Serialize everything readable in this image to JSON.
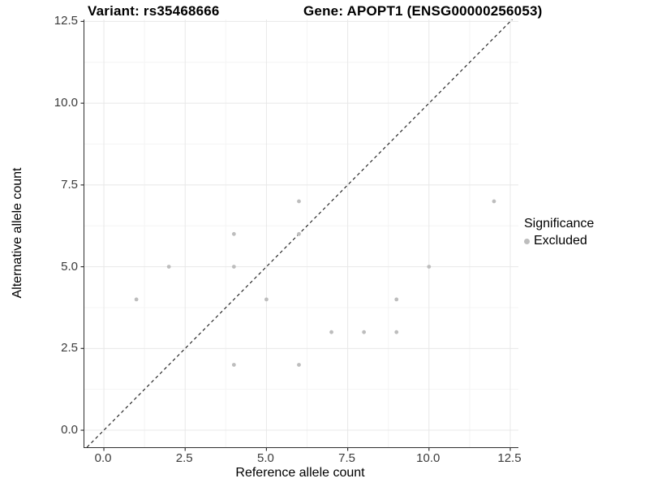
{
  "chart_data": {
    "type": "scatter",
    "title_left": "Variant: rs35468666",
    "title_right": "Gene: APOPT1 (ENSG00000256053)",
    "xlabel": "Reference allele count",
    "ylabel": "Alternative allele count",
    "xlim": [
      -0.6,
      12.75
    ],
    "ylim": [
      -0.52,
      12.56
    ],
    "x_ticks": [
      {
        "value": 0,
        "label": "0.0"
      },
      {
        "value": 2.5,
        "label": "2.5"
      },
      {
        "value": 5,
        "label": "5.0"
      },
      {
        "value": 7.5,
        "label": "7.5"
      },
      {
        "value": 10,
        "label": "10.0"
      },
      {
        "value": 12.5,
        "label": "12.5"
      }
    ],
    "y_ticks": [
      {
        "value": 0,
        "label": "0.0"
      },
      {
        "value": 2.5,
        "label": "2.5"
      },
      {
        "value": 5,
        "label": "5.0"
      },
      {
        "value": 7.5,
        "label": "7.5"
      },
      {
        "value": 10,
        "label": "10.0"
      },
      {
        "value": 12.5,
        "label": "12.5"
      }
    ],
    "x_minor_ticks": [
      1.25,
      3.75,
      6.25,
      8.75,
      11.25
    ],
    "y_minor_ticks": [
      1.25,
      3.75,
      6.25,
      8.75,
      11.25
    ],
    "grid": true,
    "identity_line": {
      "style": "dashed",
      "slope": 1,
      "intercept": 0
    },
    "legend_position": "right",
    "legend": {
      "title": "Significance",
      "items": [
        {
          "label": "Excluded",
          "color": "#bdbdbd"
        }
      ]
    },
    "series": [
      {
        "name": "Excluded",
        "color": "#bdbdbd",
        "points": [
          {
            "x": 1,
            "y": 4
          },
          {
            "x": 2,
            "y": 5
          },
          {
            "x": 4,
            "y": 2
          },
          {
            "x": 4,
            "y": 5
          },
          {
            "x": 4,
            "y": 6
          },
          {
            "x": 5,
            "y": 4
          },
          {
            "x": 6,
            "y": 2
          },
          {
            "x": 6,
            "y": 6
          },
          {
            "x": 6,
            "y": 7
          },
          {
            "x": 7,
            "y": 3
          },
          {
            "x": 8,
            "y": 3
          },
          {
            "x": 9,
            "y": 3
          },
          {
            "x": 9,
            "y": 4
          },
          {
            "x": 10,
            "y": 5
          },
          {
            "x": 12,
            "y": 7
          }
        ]
      }
    ],
    "colors": {
      "point": "#bdbdbd",
      "grid_major": "#e8e8e8",
      "grid_minor": "#f4f4f4",
      "axis_line": "#2f2f2f",
      "tick_mark": "#333333",
      "dashed_line": "#1a1a1a"
    }
  }
}
